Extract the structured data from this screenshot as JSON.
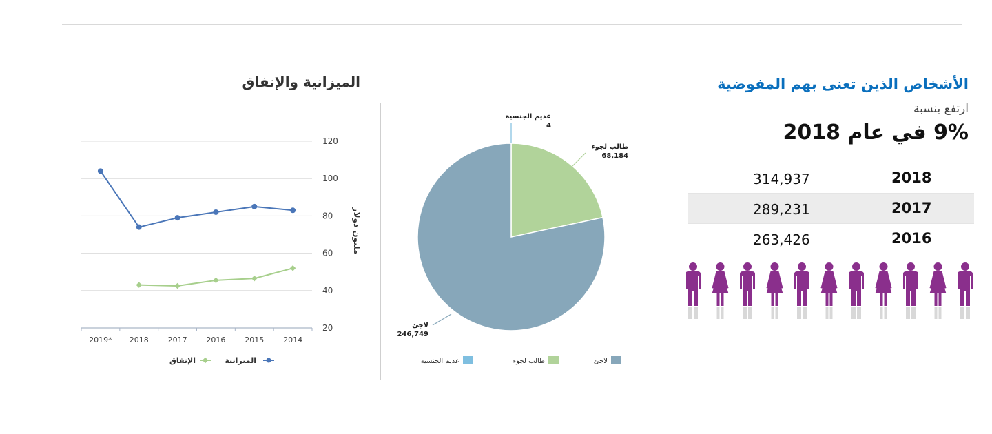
{
  "budget_title": "الميزانية والإنفاق",
  "people_panel": {
    "title": "الأشخاص الذين تعنى بهم المفوضية",
    "increase_label": "ارتفع بنسبة",
    "increase_value": "9% في عام 2018",
    "rows": [
      {
        "year": "2018",
        "value": "314,937"
      },
      {
        "year": "2017",
        "value": "289,231"
      },
      {
        "year": "2016",
        "value": "263,426"
      }
    ],
    "figure_colors": {
      "person": "#8a2f8c",
      "shadow": "#d8d8d8"
    }
  },
  "chart_data": [
    {
      "type": "line",
      "x": [
        "2014",
        "2015",
        "2016",
        "2017",
        "2018",
        "2019*"
      ],
      "series": [
        {
          "name": "الميزانية",
          "values": [
            83,
            85,
            82,
            79,
            74,
            104
          ],
          "color": "#4a76b8"
        },
        {
          "name": "الإنفاق",
          "values": [
            52,
            46.5,
            45.5,
            42.5,
            43,
            null
          ],
          "color": "#a7cf8c"
        }
      ],
      "ylabel": "مليون دولار",
      "ylim": [
        20,
        120
      ],
      "yticks": [
        20,
        40,
        60,
        80,
        100,
        120
      ],
      "grid": true,
      "legend": "bottom"
    },
    {
      "type": "pie",
      "slices": [
        {
          "name": "عديم الجنسية",
          "value": 4,
          "label": "4",
          "color": "#7fbfe0"
        },
        {
          "name": "طالب لجوء",
          "value": 68184,
          "label": "68,184",
          "color": "#b1d39a"
        },
        {
          "name": "لاجئ",
          "value": 246749,
          "label": "246,749",
          "color": "#87a7ba"
        }
      ],
      "legend": "bottom"
    }
  ]
}
